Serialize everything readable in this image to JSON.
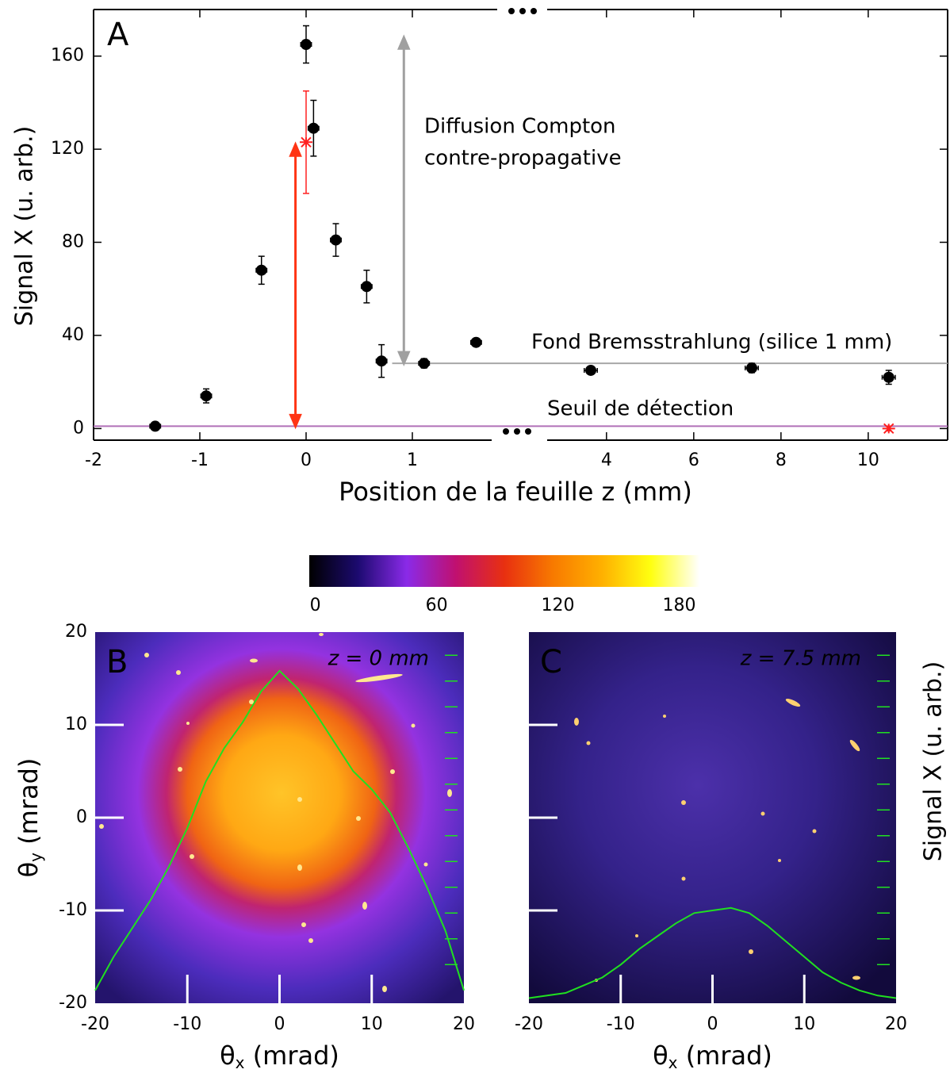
{
  "chart_data": [
    {
      "type": "scatter",
      "panel_label": "A",
      "ylabel": "Signal X (u. arb.)",
      "xlabel": "Position de la feuille z (mm)",
      "xlim_segments": [
        [
          -2,
          1.75
        ],
        [
          2.64,
          11.82
        ]
      ],
      "xticks": [
        -2,
        -1,
        0,
        1,
        4,
        6,
        8,
        10
      ],
      "ylim": [
        -5,
        180
      ],
      "yticks": [
        0,
        40,
        80,
        120,
        160
      ],
      "series": [
        {
          "color": "#000000",
          "marker": "circle",
          "x": [
            -1.42,
            -0.94,
            -0.42,
            0,
            0.07,
            0.28,
            0.57,
            0.71,
            1.11,
            1.6,
            3.64,
            7.33,
            10.47
          ],
          "values": [
            1,
            14,
            68,
            165,
            129,
            81,
            61,
            29,
            28,
            37,
            25,
            26,
            22
          ],
          "yerr": [
            1,
            3,
            6,
            8,
            12,
            7,
            7,
            7,
            2,
            1,
            1,
            2,
            3
          ],
          "xerr": [
            0.05,
            0.05,
            0.05,
            0.05,
            0.05,
            0.05,
            0.05,
            0.05,
            0.05,
            0.05,
            0.15,
            0.15,
            0.15
          ]
        },
        {
          "color": "#ff2020",
          "marker": "star",
          "x": [
            0,
            10.47
          ],
          "values": [
            123,
            0
          ],
          "yerr": [
            22,
            1
          ]
        }
      ],
      "hlines": [
        {
          "value": 28,
          "from": 0.81,
          "color": "#a8a8a8"
        },
        {
          "value": 1,
          "from": -2,
          "color": "#b070b8"
        }
      ],
      "arrows": [
        {
          "x": -0.1,
          "y": [
            1,
            122
          ],
          "color": "#ff3414"
        },
        {
          "x": 0.92,
          "y": [
            28,
            168
          ],
          "color": "#a0a0a0"
        }
      ],
      "annotations": [
        {
          "text": "Diffusion Compton",
          "color": "#222222"
        },
        {
          "text": "contre-propagative",
          "color": "#222222"
        },
        {
          "text": "Fond Bremsstrahlung (silice 1 mm)",
          "color": "#111111"
        },
        {
          "text": "Seuil de détection",
          "color": "#9a2a9a"
        }
      ]
    },
    {
      "type": "colorbar",
      "xlim": [
        -3,
        190
      ],
      "xticks": [
        0,
        60,
        120,
        180
      ],
      "colors": [
        "#000000",
        "#1c0a70",
        "#8a2ae8",
        "#c01070",
        "#e83010",
        "#f87a00",
        "#ffb000",
        "#ffff10",
        "#ffffff"
      ]
    },
    {
      "type": "image",
      "panel_label": "B",
      "annotation": "z = 0 mm",
      "xlabel": {
        "base": "θ",
        "sub": "x",
        "rest": " (mrad)"
      },
      "ylabel": {
        "base": "θ",
        "sub": "y",
        "rest": " (mrad)"
      },
      "xlim": [
        -20,
        20
      ],
      "xticks": [
        -20,
        -10,
        0,
        10,
        20
      ],
      "ylim": [
        -20,
        20
      ],
      "yticks": [
        -20,
        -10,
        0,
        10,
        20
      ],
      "ytick_labels": true,
      "y2lim": [
        0,
        14.4
      ],
      "y2ticks": [
        1.5,
        2.5,
        3.5,
        4.5,
        5.5,
        6.5,
        7.5,
        8.5,
        9.5,
        10.5,
        11.5,
        12.5,
        13.5
      ],
      "series": [
        {
          "color": "#20e020",
          "axis": "y2",
          "x": [
            -20,
            -18,
            -16,
            -14,
            -12,
            -10,
            -8,
            -6,
            -4,
            -2,
            0,
            2,
            4,
            6,
            8,
            10,
            12,
            14,
            16,
            18,
            20
          ],
          "values": [
            0.5,
            1.8,
            2.9,
            4.0,
            5.3,
            6.8,
            8.6,
            9.9,
            10.9,
            12.1,
            12.9,
            12.2,
            11.2,
            10.1,
            9.0,
            8.3,
            7.4,
            6.0,
            4.5,
            2.8,
            0.5
          ]
        }
      ]
    },
    {
      "type": "image",
      "panel_label": "C",
      "annotation": "z = 7.5 mm",
      "xlabel": {
        "base": "θ",
        "sub": "x",
        "rest": " (mrad)"
      },
      "y2label": "Signal X (u. arb.)",
      "xlim": [
        -20,
        20
      ],
      "xticks": [
        -20,
        -10,
        0,
        10,
        20
      ],
      "ylim": [
        -20,
        20
      ],
      "yticks": [
        -20,
        -10,
        0,
        10,
        20
      ],
      "ytick_labels": false,
      "y2lim": [
        0,
        14.4
      ],
      "y2ticks": [
        1.5,
        2.5,
        3.5,
        4.5,
        5.5,
        6.5,
        7.5,
        8.5,
        9.5,
        10.5,
        11.5,
        12.5,
        13.5
      ],
      "series": [
        {
          "color": "#20e020",
          "axis": "y2",
          "x": [
            -20,
            -18,
            -16,
            -14,
            -12,
            -10,
            -8,
            -6,
            -4,
            -2,
            0,
            2,
            4,
            6,
            8,
            10,
            12,
            14,
            16,
            18,
            20
          ],
          "values": [
            0.2,
            0.3,
            0.4,
            0.7,
            1.0,
            1.5,
            2.1,
            2.6,
            3.1,
            3.5,
            3.6,
            3.7,
            3.5,
            3.0,
            2.4,
            1.8,
            1.2,
            0.8,
            0.5,
            0.3,
            0.2
          ]
        }
      ]
    }
  ]
}
